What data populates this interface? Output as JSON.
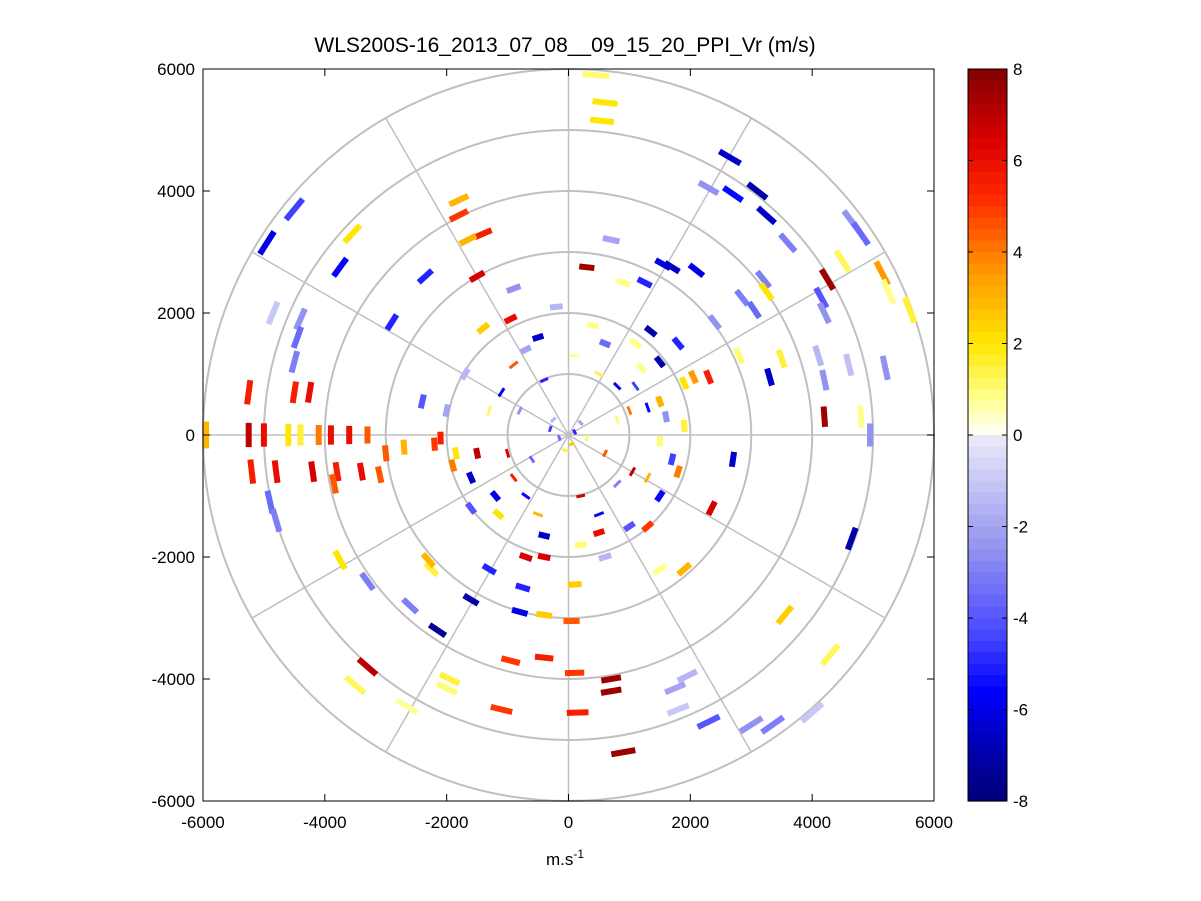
{
  "chart_data": {
    "type": "scatter",
    "subtype": "polar-ppi-radial-velocity",
    "title": "WLS200S-16_2013_07_08__09_15_20_PPI_Vr (m/s)",
    "xlabel": "m.s",
    "xlabel_sup": "-1",
    "ylabel": "",
    "xlim": [
      -6000,
      6000
    ],
    "ylim": [
      -6000,
      6000
    ],
    "xticks": [
      -6000,
      -4000,
      -2000,
      0,
      2000,
      4000,
      6000
    ],
    "xtick_labels": [
      "-6000",
      "-4000",
      "-2000",
      "0",
      "2000",
      "4000",
      "6000"
    ],
    "yticks": [
      6000,
      4000,
      2000,
      0,
      -2000,
      -4000,
      -6000
    ],
    "ytick_labels": [
      "6000",
      "4000",
      "2000",
      "0",
      "-2000",
      "-4000",
      "-6000"
    ],
    "range_rings": [
      1000,
      2000,
      3000,
      4000,
      5000,
      6000
    ],
    "spoke_angles_deg": [
      0,
      30,
      60,
      90,
      120,
      150,
      180,
      210,
      240,
      270,
      300,
      330
    ],
    "colorbar": {
      "min": -8,
      "max": 8,
      "ticks": [
        8,
        6,
        4,
        2,
        0,
        -2,
        -4,
        -6,
        -8
      ],
      "tick_labels": [
        "8",
        "6",
        "4",
        "2",
        "0",
        "-2",
        "-4",
        "-6",
        "-8"
      ],
      "levels": 64
    },
    "points": [
      {
        "x": 450,
        "y": 5900,
        "v": 1.0
      },
      {
        "x": 600,
        "y": 5450,
        "v": 2.0
      },
      {
        "x": 550,
        "y": 5150,
        "v": 2.0
      },
      {
        "x": 2650,
        "y": 4550,
        "v": -6.5
      },
      {
        "x": 2300,
        "y": 4050,
        "v": -2.5
      },
      {
        "x": 3100,
        "y": 4000,
        "v": -7.0
      },
      {
        "x": 2700,
        "y": 3950,
        "v": -5.5
      },
      {
        "x": 3250,
        "y": 3600,
        "v": -6.5
      },
      {
        "x": 3600,
        "y": 3150,
        "v": -3.0
      },
      {
        "x": 4650,
        "y": 3500,
        "v": -2.5
      },
      {
        "x": 4800,
        "y": 3300,
        "v": -3.5
      },
      {
        "x": 4250,
        "y": 2550,
        "v": 7.5
      },
      {
        "x": 4500,
        "y": 2850,
        "v": 1.2
      },
      {
        "x": 5150,
        "y": 2650,
        "v": 3.5
      },
      {
        "x": 5250,
        "y": 2350,
        "v": 0.8
      },
      {
        "x": 5600,
        "y": 2050,
        "v": 1.5
      },
      {
        "x": 4150,
        "y": 2250,
        "v": -4.0
      },
      {
        "x": 4200,
        "y": 2000,
        "v": -2.5
      },
      {
        "x": 3200,
        "y": 2550,
        "v": -3.0
      },
      {
        "x": 3250,
        "y": 2350,
        "v": 2.0
      },
      {
        "x": 2850,
        "y": 2250,
        "v": -3.0
      },
      {
        "x": 3050,
        "y": 2050,
        "v": -3.5
      },
      {
        "x": 1550,
        "y": 2800,
        "v": -6.0
      },
      {
        "x": 1700,
        "y": 2750,
        "v": -6.5
      },
      {
        "x": 2100,
        "y": 2700,
        "v": -6.0
      },
      {
        "x": 1250,
        "y": 2500,
        "v": -5.0
      },
      {
        "x": 900,
        "y": 2500,
        "v": 0.8
      },
      {
        "x": 700,
        "y": 3200,
        "v": -2.0
      },
      {
        "x": 300,
        "y": 2750,
        "v": 7.5
      },
      {
        "x": 1350,
        "y": 1700,
        "v": -7.0
      },
      {
        "x": 1800,
        "y": 1500,
        "v": -5.0
      },
      {
        "x": 2400,
        "y": 1850,
        "v": -2.5
      },
      {
        "x": 2800,
        "y": 1300,
        "v": 1.0
      },
      {
        "x": 3500,
        "y": 1250,
        "v": 1.5
      },
      {
        "x": 3300,
        "y": 950,
        "v": -6.5
      },
      {
        "x": 4100,
        "y": 1300,
        "v": -1.5
      },
      {
        "x": 4200,
        "y": 900,
        "v": -2.5
      },
      {
        "x": 4200,
        "y": 300,
        "v": 7.5
      },
      {
        "x": 4800,
        "y": 300,
        "v": 0.8
      },
      {
        "x": 4950,
        "y": 0,
        "v": -2.5
      },
      {
        "x": 4600,
        "y": 1150,
        "v": -1.2
      },
      {
        "x": 5200,
        "y": 1100,
        "v": -2.5
      },
      {
        "x": 2300,
        "y": 950,
        "v": 5.5
      },
      {
        "x": 2050,
        "y": 950,
        "v": 3.5
      },
      {
        "x": 1900,
        "y": 850,
        "v": 2.0
      },
      {
        "x": 1500,
        "y": 550,
        "v": 3.0
      },
      {
        "x": 1000,
        "y": 400,
        "v": 4.0
      },
      {
        "x": 800,
        "y": 250,
        "v": 1.0
      },
      {
        "x": 2700,
        "y": -400,
        "v": -6.5
      },
      {
        "x": 2350,
        "y": -1200,
        "v": 6.5
      },
      {
        "x": 1900,
        "y": -2200,
        "v": 3.0
      },
      {
        "x": 1500,
        "y": -2200,
        "v": 0.8
      },
      {
        "x": 4650,
        "y": -1700,
        "v": -7.0
      },
      {
        "x": 3550,
        "y": -2950,
        "v": 2.5
      },
      {
        "x": 4300,
        "y": -3600,
        "v": 1.2
      },
      {
        "x": 4000,
        "y": -4550,
        "v": -1.0
      },
      {
        "x": 3350,
        "y": -4750,
        "v": -3.0
      },
      {
        "x": 3000,
        "y": -4750,
        "v": -2.5
      },
      {
        "x": 2300,
        "y": -4700,
        "v": -4.0
      },
      {
        "x": 1800,
        "y": -4500,
        "v": -1.0
      },
      {
        "x": 1750,
        "y": -4150,
        "v": -2.0
      },
      {
        "x": 1950,
        "y": -3950,
        "v": -1.5
      },
      {
        "x": 900,
        "y": -5200,
        "v": 7.5
      },
      {
        "x": 700,
        "y": -4000,
        "v": 7.5
      },
      {
        "x": 700,
        "y": -4200,
        "v": 7.5
      },
      {
        "x": 150,
        "y": -4550,
        "v": 5.5
      },
      {
        "x": 100,
        "y": -3900,
        "v": 5.0
      },
      {
        "x": 50,
        "y": -3050,
        "v": 4.5
      },
      {
        "x": 100,
        "y": -2450,
        "v": 2.5
      },
      {
        "x": -400,
        "y": -2950,
        "v": 2.5
      },
      {
        "x": -400,
        "y": -3650,
        "v": 5.5
      },
      {
        "x": -950,
        "y": -3700,
        "v": 5.0
      },
      {
        "x": -1100,
        "y": -4500,
        "v": 5.0
      },
      {
        "x": -800,
        "y": -2900,
        "v": -6.0
      },
      {
        "x": -750,
        "y": -2500,
        "v": -5.0
      },
      {
        "x": -1300,
        "y": -2200,
        "v": -5.0
      },
      {
        "x": -1600,
        "y": -2700,
        "v": -7.0
      },
      {
        "x": -2000,
        "y": -4150,
        "v": 1.0
      },
      {
        "x": -1950,
        "y": -4000,
        "v": 1.5
      },
      {
        "x": -2150,
        "y": -3200,
        "v": -7.5
      },
      {
        "x": -2250,
        "y": -2200,
        "v": 1.5
      },
      {
        "x": -2300,
        "y": -2050,
        "v": 3.0
      },
      {
        "x": -2600,
        "y": -2800,
        "v": -3.0
      },
      {
        "x": -3300,
        "y": -3800,
        "v": 7.0
      },
      {
        "x": -3500,
        "y": -4100,
        "v": 1.2
      },
      {
        "x": -2650,
        "y": -4450,
        "v": 0.7
      },
      {
        "x": -3750,
        "y": -2050,
        "v": 2.0
      },
      {
        "x": -3300,
        "y": -2400,
        "v": -3.0
      },
      {
        "x": -4900,
        "y": -1100,
        "v": -3.5
      },
      {
        "x": -4800,
        "y": -1400,
        "v": -3.0
      },
      {
        "x": -5200,
        "y": -600,
        "v": 5.5
      },
      {
        "x": -4800,
        "y": -600,
        "v": 6.0
      },
      {
        "x": -4200,
        "y": -600,
        "v": 6.5
      },
      {
        "x": -3800,
        "y": -600,
        "v": 5.5
      },
      {
        "x": -3850,
        "y": -800,
        "v": 4.5
      },
      {
        "x": -3400,
        "y": -600,
        "v": 6.0
      },
      {
        "x": -3100,
        "y": -650,
        "v": 4.5
      },
      {
        "x": -5250,
        "y": 0,
        "v": 7.0
      },
      {
        "x": -5000,
        "y": 0,
        "v": 6.0
      },
      {
        "x": -4600,
        "y": 0,
        "v": 2.0
      },
      {
        "x": -4400,
        "y": 0,
        "v": 1.5
      },
      {
        "x": -4100,
        "y": 0,
        "v": 4.0
      },
      {
        "x": -3900,
        "y": 0,
        "v": 6.0
      },
      {
        "x": -3600,
        "y": 0,
        "v": 6.0
      },
      {
        "x": -3300,
        "y": 0,
        "v": 4.5
      },
      {
        "x": -3000,
        "y": -300,
        "v": 4.5
      },
      {
        "x": -2700,
        "y": -200,
        "v": 3.0
      },
      {
        "x": -2200,
        "y": -150,
        "v": 5.0
      },
      {
        "x": -5950,
        "y": 0,
        "v": 3.0
      },
      {
        "x": -5250,
        "y": 700,
        "v": 5.5
      },
      {
        "x": -4500,
        "y": 700,
        "v": 5.5
      },
      {
        "x": -4250,
        "y": 700,
        "v": 6.0
      },
      {
        "x": -4500,
        "y": 1200,
        "v": -3.0
      },
      {
        "x": -4400,
        "y": 1900,
        "v": -2.5
      },
      {
        "x": -4850,
        "y": 2000,
        "v": -1.0
      },
      {
        "x": -4450,
        "y": 1600,
        "v": -3.5
      },
      {
        "x": -2900,
        "y": 1850,
        "v": -5.0
      },
      {
        "x": -2400,
        "y": 550,
        "v": -4.0
      },
      {
        "x": -3750,
        "y": 2750,
        "v": -5.5
      },
      {
        "x": -3550,
        "y": 3300,
        "v": 2.0
      },
      {
        "x": -2350,
        "y": 2600,
        "v": -5.0
      },
      {
        "x": -4500,
        "y": 3700,
        "v": -4.5
      },
      {
        "x": -4950,
        "y": 3150,
        "v": -6.0
      },
      {
        "x": -1800,
        "y": 3850,
        "v": 3.0
      },
      {
        "x": -1800,
        "y": 3600,
        "v": 5.0
      },
      {
        "x": -1400,
        "y": 3300,
        "v": 5.5
      },
      {
        "x": -1650,
        "y": 3200,
        "v": 3.0
      },
      {
        "x": -1500,
        "y": 2600,
        "v": 6.5
      },
      {
        "x": -1400,
        "y": 1750,
        "v": 2.5
      },
      {
        "x": -950,
        "y": 1900,
        "v": 6.0
      },
      {
        "x": -1700,
        "y": 1000,
        "v": -1.5
      },
      {
        "x": -2000,
        "y": 400,
        "v": -2.0
      },
      {
        "x": -1850,
        "y": -300,
        "v": 2.0
      },
      {
        "x": -2100,
        "y": -50,
        "v": 5.5
      },
      {
        "x": -1500,
        "y": -300,
        "v": 7.0
      },
      {
        "x": -700,
        "y": -2000,
        "v": 6.5
      },
      {
        "x": -400,
        "y": -2000,
        "v": 6.5
      },
      {
        "x": 200,
        "y": -1800,
        "v": 1.0
      },
      {
        "x": 600,
        "y": -2000,
        "v": -1.5
      },
      {
        "x": 1000,
        "y": -1500,
        "v": -4.0
      },
      {
        "x": 1300,
        "y": -1500,
        "v": 5.0
      },
      {
        "x": 1050,
        "y": -600,
        "v": 7.0
      },
      {
        "x": 500,
        "y": -1300,
        "v": -5.5
      },
      {
        "x": -500,
        "y": -1300,
        "v": 3.0
      },
      {
        "x": -1200,
        "y": -1000,
        "v": -6.0
      },
      {
        "x": -900,
        "y": -700,
        "v": 5.5
      },
      {
        "x": -600,
        "y": -400,
        "v": -3.5
      },
      {
        "x": 600,
        "y": -300,
        "v": 4.5
      },
      {
        "x": 1500,
        "y": -100,
        "v": 1.0
      },
      {
        "x": 1600,
        "y": 300,
        "v": -2.5
      },
      {
        "x": 1200,
        "y": 1100,
        "v": 0.8
      },
      {
        "x": 600,
        "y": 1500,
        "v": -3.5
      },
      {
        "x": 100,
        "y": 1300,
        "v": 0.8
      },
      {
        "x": -500,
        "y": 1600,
        "v": -6.5
      },
      {
        "x": -900,
        "y": 1150,
        "v": 4.5
      },
      {
        "x": -1100,
        "y": 700,
        "v": -6.0
      },
      {
        "x": -800,
        "y": 400,
        "v": -2.5
      },
      {
        "x": -300,
        "y": 100,
        "v": -4.5
      },
      {
        "x": -150,
        "y": -50,
        "v": -3.5
      },
      {
        "x": 100,
        "y": 50,
        "v": -5.0
      },
      {
        "x": 50,
        "y": -150,
        "v": 2.5
      },
      {
        "x": -50,
        "y": -250,
        "v": 1.5
      },
      {
        "x": 200,
        "y": 200,
        "v": -2.0
      },
      {
        "x": 300,
        "y": -50,
        "v": 1.2
      },
      {
        "x": -250,
        "y": 250,
        "v": -1.5
      },
      {
        "x": 800,
        "y": 800,
        "v": -6.0
      },
      {
        "x": 1100,
        "y": 800,
        "v": -4.5
      },
      {
        "x": 1500,
        "y": 1200,
        "v": -7.0
      },
      {
        "x": 500,
        "y": 1000,
        "v": 1.5
      },
      {
        "x": -400,
        "y": 900,
        "v": -5.0
      },
      {
        "x": -1300,
        "y": 400,
        "v": 1.2
      },
      {
        "x": -1000,
        "y": -300,
        "v": 6.5
      },
      {
        "x": -700,
        "y": -1000,
        "v": -5.5
      },
      {
        "x": 200,
        "y": -1000,
        "v": 6.5
      },
      {
        "x": 800,
        "y": -800,
        "v": -3.0
      },
      {
        "x": 1300,
        "y": -700,
        "v": 3.0
      },
      {
        "x": 1700,
        "y": -400,
        "v": -4.5
      },
      {
        "x": 1900,
        "y": 150,
        "v": 1.5
      },
      {
        "x": 1300,
        "y": 450,
        "v": -5.5
      },
      {
        "x": 400,
        "y": 1800,
        "v": 0.8
      },
      {
        "x": -200,
        "y": 2100,
        "v": -1.5
      },
      {
        "x": -900,
        "y": 2400,
        "v": -2.5
      },
      {
        "x": -1150,
        "y": -1300,
        "v": 2.0
      },
      {
        "x": -1600,
        "y": -1200,
        "v": -4.0
      },
      {
        "x": -1600,
        "y": -700,
        "v": -6.5
      },
      {
        "x": -1900,
        "y": -500,
        "v": 4.0
      },
      {
        "x": 1500,
        "y": -1000,
        "v": -5.5
      },
      {
        "x": 1800,
        "y": -600,
        "v": 4.0
      },
      {
        "x": -400,
        "y": -1650,
        "v": -6.5
      },
      {
        "x": 500,
        "y": -1600,
        "v": 6.0
      },
      {
        "x": 1100,
        "y": 1500,
        "v": 0.8
      },
      {
        "x": -700,
        "y": 1400,
        "v": -2.0
      }
    ]
  }
}
